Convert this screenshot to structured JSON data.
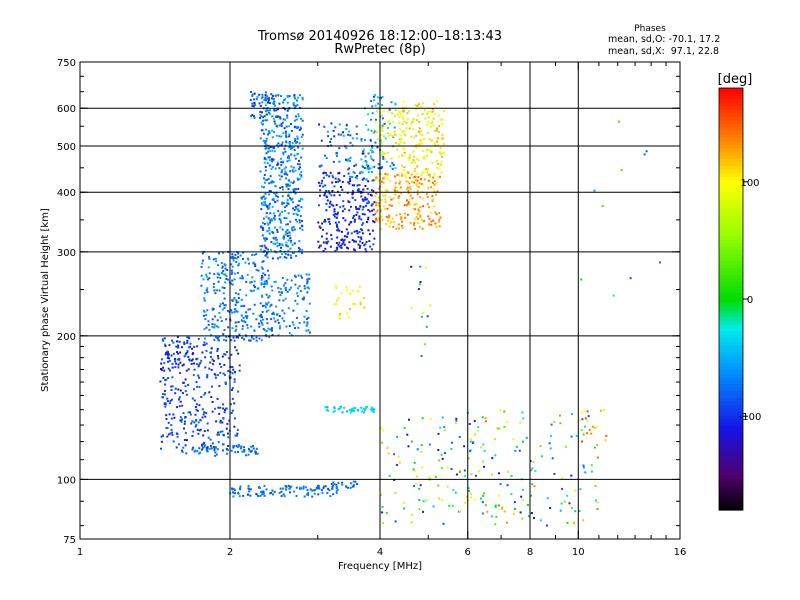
{
  "chart_data": {
    "type": "scatter",
    "title": "Tromsø 20140926 18:12:00–18:13:43",
    "subtitle": "RwPretec (8p)",
    "xlabel": "Frequency [MHz]",
    "ylabel": "Stationary phase Virtual Height [km]",
    "x_scale": "log",
    "y_scale": "log",
    "xlim": [
      1,
      16
    ],
    "ylim": [
      75,
      750
    ],
    "x_ticks": [
      1,
      2,
      4,
      6,
      8,
      10,
      16
    ],
    "x_tick_labels": [
      "1",
      "2",
      "4",
      "6",
      "8",
      "10",
      "16"
    ],
    "y_ticks": [
      75,
      100,
      200,
      300,
      400,
      500,
      600,
      750
    ],
    "y_tick_labels": [
      "75",
      "100",
      "200",
      "300",
      "400",
      "500",
      "600",
      "750"
    ],
    "grid": true,
    "phases_panel": {
      "title": "Phases",
      "line_o": "mean, sd,O: -70.1, 17.2",
      "line_x": "mean, sd,X:  97.1, 22.8"
    },
    "colorbar": {
      "label": "[deg]",
      "range": [
        -180,
        180
      ],
      "ticks": [
        100,
        0,
        -100
      ],
      "tick_labels": [
        "100",
        "0",
        "-100"
      ]
    },
    "clusters": [
      {
        "f": [
          2.3,
          2.8
        ],
        "h": [
          290,
          640
        ],
        "phase": [
          -100,
          -40
        ],
        "n": 520
      },
      {
        "f": [
          2.2,
          2.5
        ],
        "h": [
          560,
          650
        ],
        "phase": [
          -110,
          -60
        ],
        "n": 50
      },
      {
        "f": [
          3.0,
          3.9
        ],
        "h": [
          300,
          440
        ],
        "phase": [
          -130,
          -80
        ],
        "n": 260
      },
      {
        "f": [
          3.0,
          3.9
        ],
        "h": [
          420,
          560
        ],
        "phase": [
          -110,
          -40
        ],
        "n": 90
      },
      {
        "f": [
          3.7,
          4.3
        ],
        "h": [
          440,
          640
        ],
        "phase": [
          -100,
          -20
        ],
        "n": 70
      },
      {
        "f": [
          3.9,
          5.3
        ],
        "h": [
          335,
          440
        ],
        "phase": [
          100,
          150
        ],
        "n": 230
      },
      {
        "f": [
          4.4,
          5.4
        ],
        "h": [
          430,
          620
        ],
        "phase": [
          70,
          130
        ],
        "n": 160
      },
      {
        "f": [
          3.9,
          4.4
        ],
        "h": [
          470,
          600
        ],
        "phase": [
          60,
          110
        ],
        "n": 50
      },
      {
        "f": [
          1.75,
          2.4
        ],
        "h": [
          195,
          300
        ],
        "phase": [
          -90,
          -50
        ],
        "n": 280
      },
      {
        "f": [
          2.3,
          2.9
        ],
        "h": [
          200,
          270
        ],
        "phase": [
          -90,
          -50
        ],
        "n": 130
      },
      {
        "f": [
          1.45,
          2.1
        ],
        "h": [
          115,
          200
        ],
        "phase": [
          -110,
          -70
        ],
        "n": 330
      },
      {
        "f": [
          1.45,
          1.7
        ],
        "h": [
          170,
          195
        ],
        "phase": [
          -120,
          -90
        ],
        "n": 40
      },
      {
        "f": [
          1.6,
          2.3
        ],
        "h": [
          112,
          118
        ],
        "phase": [
          -90,
          -60
        ],
        "n": 60
      },
      {
        "f": [
          3.1,
          3.9
        ],
        "h": [
          138,
          142
        ],
        "phase": [
          -50,
          -20
        ],
        "n": 45
      },
      {
        "f": [
          2.0,
          3.3
        ],
        "h": [
          92,
          97
        ],
        "phase": [
          -90,
          -60
        ],
        "n": 110
      },
      {
        "f": [
          3.2,
          3.6
        ],
        "h": [
          96,
          99
        ],
        "phase": [
          -90,
          -60
        ],
        "n": 20
      },
      {
        "f": [
          3.25,
          3.75
        ],
        "h": [
          215,
          260
        ],
        "phase": [
          80,
          120
        ],
        "n": 25
      },
      {
        "f": [
          4.0,
          6.5
        ],
        "h": [
          80,
          135
        ],
        "phase": [
          -120,
          120
        ],
        "n": 110
      },
      {
        "f": [
          6.0,
          11.0
        ],
        "h": [
          80,
          140
        ],
        "phase": [
          -120,
          150
        ],
        "n": 130
      },
      {
        "f": [
          4.6,
          5.1
        ],
        "h": [
          170,
          290
        ],
        "phase": [
          -120,
          140
        ],
        "n": 14
      },
      {
        "f": [
          10.0,
          11.5
        ],
        "h": [
          120,
          140
        ],
        "phase": [
          80,
          160
        ],
        "n": 15
      },
      {
        "f": [
          10.0,
          15.0
        ],
        "h": [
          200,
          620
        ],
        "phase": [
          -90,
          40
        ],
        "n": 10
      }
    ]
  }
}
